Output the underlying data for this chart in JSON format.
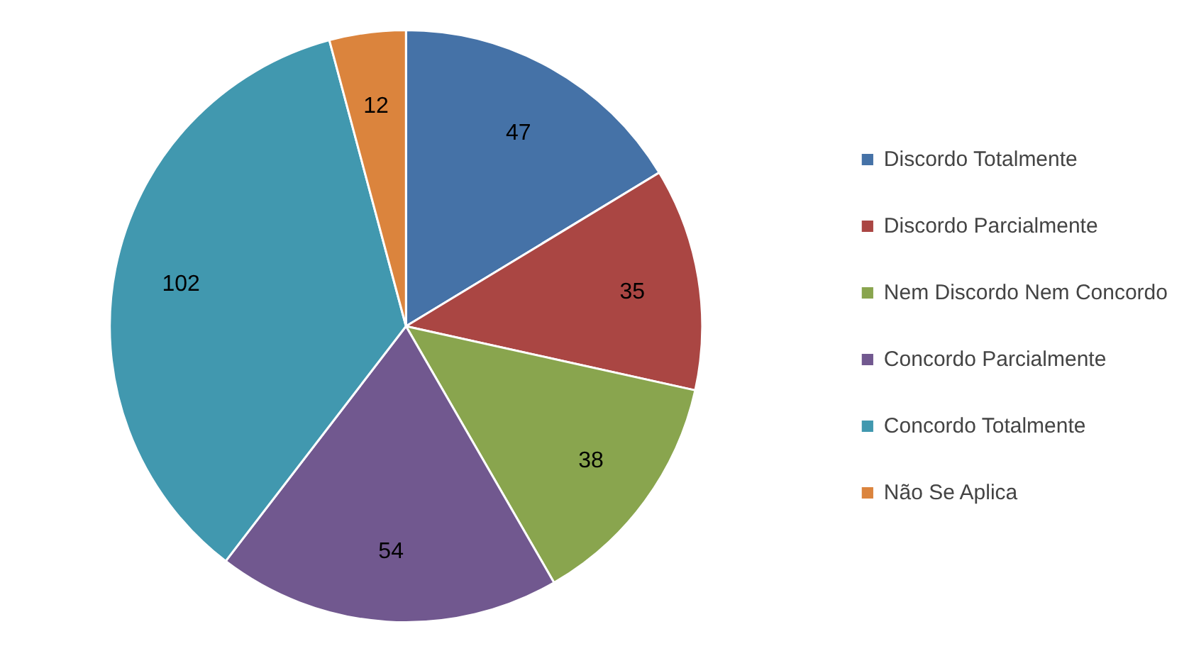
{
  "chart_data": {
    "type": "pie",
    "categories": [
      "Discordo Totalmente",
      "Discordo Parcialmente",
      "Nem Discordo Nem Concordo",
      "Concordo Parcialmente",
      "Concordo Totalmente",
      "Não Se Aplica"
    ],
    "values": [
      47,
      35,
      38,
      54,
      102,
      12
    ],
    "colors": [
      "#4572a7",
      "#aa4643",
      "#89a54e",
      "#71588f",
      "#4198af",
      "#db843d"
    ],
    "data_labels": true,
    "legend": "right"
  }
}
